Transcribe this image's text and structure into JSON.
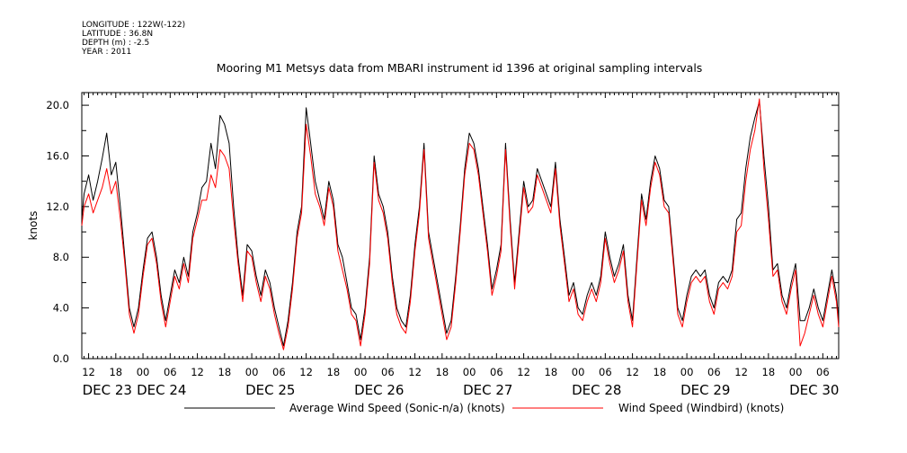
{
  "meta": {
    "longitude": "LONGITUDE : 122W(-122)",
    "latitude": "LATITUDE : 36.8N",
    "depth": "DEPTH (m) : -2.5",
    "year": "YEAR : 2011"
  },
  "chart_data": {
    "type": "line",
    "title": "Mooring M1 Metsys data from MBARI instrument id 1396 at original sampling intervals",
    "xlabel": "",
    "ylabel": "knots",
    "ylim": [
      0,
      21
    ],
    "yticks": [
      "0.0",
      "4.0",
      "8.0",
      "12.0",
      "16.0",
      "20.0"
    ],
    "x_unit": "hours since DEC 23 00:00, 2011",
    "xlim": [
      10.5,
      177.5
    ],
    "hour_ticks": [
      {
        "h": 12,
        "label": "12"
      },
      {
        "h": 18,
        "label": "18"
      },
      {
        "h": 24,
        "label": "00"
      },
      {
        "h": 30,
        "label": "06"
      },
      {
        "h": 36,
        "label": "12"
      },
      {
        "h": 42,
        "label": "18"
      },
      {
        "h": 48,
        "label": "00"
      },
      {
        "h": 54,
        "label": "06"
      },
      {
        "h": 60,
        "label": "12"
      },
      {
        "h": 66,
        "label": "18"
      },
      {
        "h": 72,
        "label": "00"
      },
      {
        "h": 78,
        "label": "06"
      },
      {
        "h": 84,
        "label": "12"
      },
      {
        "h": 90,
        "label": "18"
      },
      {
        "h": 96,
        "label": "00"
      },
      {
        "h": 102,
        "label": "06"
      },
      {
        "h": 108,
        "label": "12"
      },
      {
        "h": 114,
        "label": "18"
      },
      {
        "h": 120,
        "label": "00"
      },
      {
        "h": 126,
        "label": "06"
      },
      {
        "h": 132,
        "label": "12"
      },
      {
        "h": 138,
        "label": "18"
      },
      {
        "h": 144,
        "label": "00"
      },
      {
        "h": 150,
        "label": "06"
      },
      {
        "h": 156,
        "label": "12"
      },
      {
        "h": 162,
        "label": "18"
      },
      {
        "h": 168,
        "label": "00"
      },
      {
        "h": 174,
        "label": "06"
      }
    ],
    "day_labels": [
      {
        "h": 12,
        "label": "DEC 23"
      },
      {
        "h": 24,
        "label": "DEC 24"
      },
      {
        "h": 48,
        "label": "DEC 25"
      },
      {
        "h": 72,
        "label": "DEC 26"
      },
      {
        "h": 96,
        "label": "DEC 27"
      },
      {
        "h": 120,
        "label": "DEC 28"
      },
      {
        "h": 144,
        "label": "DEC 29"
      },
      {
        "h": 168,
        "label": "DEC 30"
      }
    ],
    "series": [
      {
        "name": "Average Wind Speed (Sonic-n/a) (knots)",
        "color": "#000000",
        "x": [
          10.5,
          11,
          12,
          13,
          14,
          15,
          16,
          17,
          18,
          19,
          20,
          21,
          22,
          23,
          24,
          25,
          26,
          27,
          28,
          29,
          30,
          31,
          32,
          33,
          34,
          35,
          36,
          37,
          38,
          39,
          40,
          41,
          42,
          43,
          44,
          45,
          46,
          47,
          48,
          49,
          50,
          51,
          52,
          53,
          54,
          55,
          56,
          57,
          58,
          59,
          60,
          61,
          62,
          63,
          64,
          65,
          66,
          67,
          68,
          69,
          70,
          71,
          72,
          73,
          74,
          75,
          76,
          77,
          78,
          79,
          80,
          81,
          82,
          83,
          84,
          85,
          86,
          87,
          88,
          89,
          90,
          91,
          92,
          93,
          94,
          95,
          96,
          97,
          98,
          99,
          100,
          101,
          102,
          103,
          104,
          105,
          106,
          107,
          108,
          109,
          110,
          111,
          112,
          113,
          114,
          115,
          116,
          117,
          118,
          119,
          120,
          121,
          122,
          123,
          124,
          125,
          126,
          127,
          128,
          129,
          130,
          131,
          132,
          133,
          134,
          135,
          136,
          137,
          138,
          139,
          140,
          141,
          142,
          143,
          144,
          145,
          146,
          147,
          148,
          149,
          150,
          151,
          152,
          153,
          154,
          155,
          156,
          157,
          158,
          159,
          160,
          161,
          162,
          163,
          164,
          165,
          166,
          167,
          168,
          169,
          170,
          171,
          172,
          173,
          174,
          175,
          176,
          177,
          177.5
        ],
        "y": [
          11.0,
          13.0,
          14.5,
          12.5,
          14.0,
          15.8,
          17.8,
          14.5,
          15.5,
          12.0,
          8.0,
          4.0,
          2.5,
          4.0,
          7.0,
          9.5,
          10.0,
          8.0,
          5.0,
          3.0,
          5.0,
          7.0,
          6.0,
          8.0,
          6.5,
          10.0,
          11.5,
          13.5,
          14.0,
          17.0,
          15.0,
          19.2,
          18.5,
          17.0,
          12.0,
          8.0,
          5.0,
          9.0,
          8.5,
          6.5,
          5.0,
          7.0,
          6.0,
          4.0,
          2.5,
          1.0,
          3.0,
          6.0,
          10.0,
          12.0,
          19.8,
          17.0,
          14.0,
          12.5,
          11.0,
          14.0,
          12.5,
          9.0,
          8.0,
          6.0,
          4.0,
          3.5,
          1.5,
          4.0,
          8.0,
          16.0,
          13.0,
          12.0,
          10.0,
          6.5,
          4.0,
          3.0,
          2.5,
          5.0,
          9.0,
          12.0,
          17.0,
          10.0,
          8.0,
          6.0,
          4.0,
          2.0,
          3.0,
          6.5,
          10.5,
          15.0,
          17.8,
          17.0,
          15.0,
          12.0,
          9.0,
          5.5,
          7.0,
          9.0,
          17.0,
          11.0,
          6.0,
          10.0,
          14.0,
          12.0,
          12.5,
          15.0,
          14.0,
          13.0,
          12.0,
          15.5,
          11.0,
          8.0,
          5.0,
          6.0,
          4.0,
          3.5,
          5.0,
          6.0,
          5.0,
          6.5,
          10.0,
          8.0,
          6.5,
          7.5,
          9.0,
          5.0,
          3.0,
          8.0,
          13.0,
          11.0,
          14.0,
          16.0,
          15.0,
          12.5,
          12.0,
          8.0,
          4.0,
          3.0,
          5.0,
          6.5,
          7.0,
          6.5,
          7.0,
          5.0,
          4.0,
          6.0,
          6.5,
          6.0,
          7.0,
          11.0,
          11.5,
          15.0,
          17.5,
          19.0,
          20.3,
          16.0,
          12.0,
          7.0,
          7.5,
          5.0,
          4.0,
          6.0,
          7.5,
          3.0,
          3.0,
          4.0,
          5.5,
          4.0,
          3.0,
          5.0,
          7.0,
          5.0,
          3.0
        ]
      },
      {
        "name": "Wind Speed (Windbird) (knots)",
        "color": "#ff0000",
        "x": [
          10.5,
          11,
          12,
          13,
          14,
          15,
          16,
          17,
          18,
          19,
          20,
          21,
          22,
          23,
          24,
          25,
          26,
          27,
          28,
          29,
          30,
          31,
          32,
          33,
          34,
          35,
          36,
          37,
          38,
          39,
          40,
          41,
          42,
          43,
          44,
          45,
          46,
          47,
          48,
          49,
          50,
          51,
          52,
          53,
          54,
          55,
          56,
          57,
          58,
          59,
          60,
          61,
          62,
          63,
          64,
          65,
          66,
          67,
          68,
          69,
          70,
          71,
          72,
          73,
          74,
          75,
          76,
          77,
          78,
          79,
          80,
          81,
          82,
          83,
          84,
          85,
          86,
          87,
          88,
          89,
          90,
          91,
          92,
          93,
          94,
          95,
          96,
          97,
          98,
          99,
          100,
          101,
          102,
          103,
          104,
          105,
          106,
          107,
          108,
          109,
          110,
          111,
          112,
          113,
          114,
          115,
          116,
          117,
          118,
          119,
          120,
          121,
          122,
          123,
          124,
          125,
          126,
          127,
          128,
          129,
          130,
          131,
          132,
          133,
          134,
          135,
          136,
          137,
          138,
          139,
          140,
          141,
          142,
          143,
          144,
          145,
          146,
          147,
          148,
          149,
          150,
          151,
          152,
          153,
          154,
          155,
          156,
          157,
          158,
          159,
          160,
          161,
          162,
          163,
          164,
          165,
          166,
          167,
          168,
          169,
          170,
          171,
          172,
          173,
          174,
          175,
          176,
          177,
          177.5
        ],
        "y": [
          10.5,
          12.0,
          13.0,
          11.5,
          12.5,
          13.5,
          15.0,
          13.0,
          14.0,
          11.0,
          7.5,
          3.5,
          2.0,
          3.5,
          6.5,
          9.0,
          9.5,
          7.5,
          4.5,
          2.5,
          4.5,
          6.5,
          5.5,
          7.5,
          6.0,
          9.5,
          11.0,
          12.5,
          12.5,
          14.5,
          13.5,
          16.5,
          16.0,
          15.0,
          11.0,
          7.5,
          4.5,
          8.5,
          8.0,
          6.0,
          4.5,
          6.5,
          5.5,
          3.5,
          2.0,
          0.7,
          2.5,
          5.5,
          9.5,
          11.5,
          18.5,
          16.0,
          13.0,
          12.0,
          10.5,
          13.5,
          12.0,
          8.5,
          7.0,
          5.5,
          3.5,
          3.0,
          1.0,
          3.5,
          7.5,
          15.5,
          12.5,
          11.5,
          9.5,
          6.0,
          3.5,
          2.5,
          2.0,
          4.5,
          8.5,
          11.5,
          16.5,
          9.5,
          7.5,
          5.5,
          3.5,
          1.5,
          2.5,
          6.0,
          10.0,
          14.5,
          17.0,
          16.5,
          14.5,
          11.5,
          8.5,
          5.0,
          6.5,
          8.5,
          16.5,
          10.5,
          5.5,
          9.5,
          13.5,
          11.5,
          12.0,
          14.5,
          13.5,
          12.5,
          11.5,
          15.0,
          10.5,
          7.5,
          4.5,
          5.5,
          3.5,
          3.0,
          4.5,
          5.5,
          4.5,
          6.0,
          9.5,
          7.5,
          6.0,
          7.0,
          8.5,
          4.5,
          2.5,
          7.5,
          12.5,
          10.5,
          13.5,
          15.5,
          14.5,
          12.0,
          11.5,
          7.5,
          3.5,
          2.5,
          4.5,
          6.0,
          6.5,
          6.0,
          6.5,
          4.5,
          3.5,
          5.5,
          6.0,
          5.5,
          6.5,
          10.0,
          10.5,
          14.0,
          16.5,
          18.0,
          20.5,
          15.0,
          11.0,
          6.5,
          7.0,
          4.5,
          3.5,
          5.5,
          7.0,
          1.0,
          2.0,
          3.5,
          5.0,
          3.5,
          2.5,
          4.5,
          6.5,
          4.5,
          2.5
        ]
      }
    ],
    "legend": "bottom"
  }
}
